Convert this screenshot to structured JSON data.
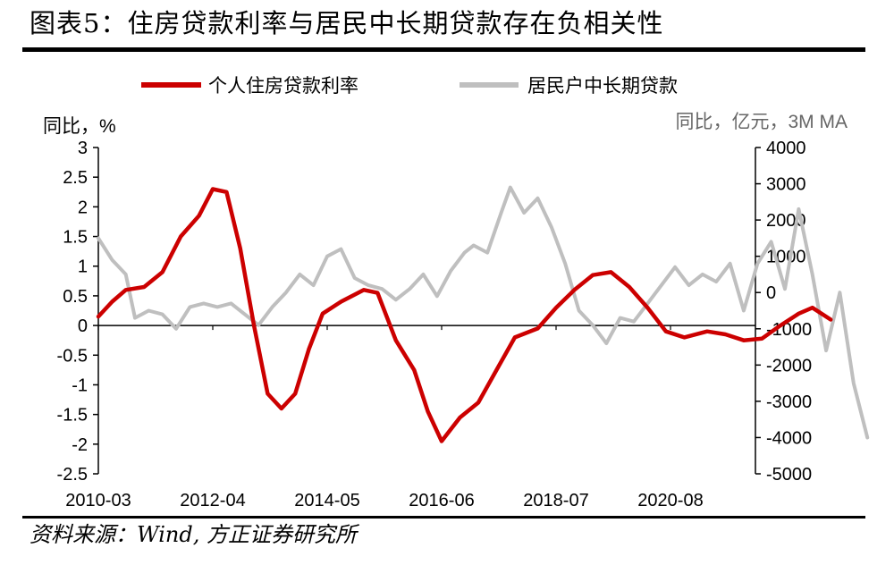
{
  "header": {
    "title": "图表5：住房贷款利率与居民中长期贷款存在负相关性"
  },
  "footer": {
    "source": "资料来源：Wind, 方正证券研究所"
  },
  "chart_data": {
    "type": "line",
    "title": "图表5：住房贷款利率与居民中长期贷款存在负相关性",
    "left_axis": {
      "unit_label": "同比，%",
      "range": [
        -2.5,
        3
      ],
      "ticks": [
        "3",
        "2.5",
        "2",
        "1.5",
        "1",
        "0.5",
        "0",
        "-0.5",
        "-1",
        "-1.5",
        "-2",
        "-2.5"
      ]
    },
    "right_axis": {
      "unit_label": "同比，亿元，3M MA",
      "range": [
        -5000,
        4000
      ],
      "ticks": [
        "4000",
        "3000",
        "2000",
        "1000",
        "0",
        "-1000",
        "-2000",
        "-3000",
        "-4000",
        "-5000"
      ]
    },
    "x_tick_labels": [
      "2010-03",
      "2012-04",
      "2014-05",
      "2016-06",
      "2018-07",
      "2020-08"
    ],
    "legend_position": "top",
    "colors": {
      "red": "#cc0000",
      "gray": "#bfbfbf"
    },
    "series": [
      {
        "name": "个人住房贷款利率",
        "axis": "left",
        "color": "#cc0000",
        "points": [
          [
            "2010-03",
            0.15
          ],
          [
            "2010-06",
            0.4
          ],
          [
            "2010-09",
            0.6
          ],
          [
            "2011-01",
            0.65
          ],
          [
            "2011-05",
            0.9
          ],
          [
            "2011-09",
            1.5
          ],
          [
            "2012-01",
            1.85
          ],
          [
            "2012-04",
            2.3
          ],
          [
            "2012-07",
            2.25
          ],
          [
            "2012-10",
            1.3
          ],
          [
            "2013-01",
            0.0
          ],
          [
            "2013-04",
            -1.15
          ],
          [
            "2013-07",
            -1.4
          ],
          [
            "2013-10",
            -1.15
          ],
          [
            "2014-01",
            -0.4
          ],
          [
            "2014-04",
            0.2
          ],
          [
            "2014-08",
            0.4
          ],
          [
            "2015-01",
            0.6
          ],
          [
            "2015-04",
            0.55
          ],
          [
            "2015-08",
            -0.25
          ],
          [
            "2015-12",
            -0.75
          ],
          [
            "2016-03",
            -1.45
          ],
          [
            "2016-06",
            -1.95
          ],
          [
            "2016-10",
            -1.55
          ],
          [
            "2017-02",
            -1.3
          ],
          [
            "2017-06",
            -0.75
          ],
          [
            "2017-10",
            -0.2
          ],
          [
            "2018-03",
            -0.05
          ],
          [
            "2018-07",
            0.3
          ],
          [
            "2018-11",
            0.6
          ],
          [
            "2019-03",
            0.85
          ],
          [
            "2019-07",
            0.9
          ],
          [
            "2019-11",
            0.65
          ],
          [
            "2020-03",
            0.3
          ],
          [
            "2020-07",
            -0.1
          ],
          [
            "2020-11",
            -0.2
          ],
          [
            "2021-04",
            -0.1
          ],
          [
            "2021-08",
            -0.15
          ],
          [
            "2021-12",
            -0.25
          ],
          [
            "2022-04",
            -0.22
          ],
          [
            "2022-08",
            0.0
          ],
          [
            "2022-12",
            0.2
          ],
          [
            "2023-03",
            0.3
          ],
          [
            "2023-07",
            0.1
          ]
        ]
      },
      {
        "name": "居民户中长期贷款",
        "axis": "right",
        "color": "#bfbfbf",
        "points": [
          [
            "2010-03",
            1500
          ],
          [
            "2010-06",
            900
          ],
          [
            "2010-09",
            500
          ],
          [
            "2010-11",
            -700
          ],
          [
            "2011-02",
            -500
          ],
          [
            "2011-05",
            -600
          ],
          [
            "2011-08",
            -1000
          ],
          [
            "2011-11",
            -400
          ],
          [
            "2012-02",
            -300
          ],
          [
            "2012-05",
            -400
          ],
          [
            "2012-08",
            -300
          ],
          [
            "2012-11",
            -600
          ],
          [
            "2013-02",
            -900
          ],
          [
            "2013-05",
            -400
          ],
          [
            "2013-08",
            0
          ],
          [
            "2013-11",
            500
          ],
          [
            "2014-02",
            200
          ],
          [
            "2014-05",
            1000
          ],
          [
            "2014-08",
            1200
          ],
          [
            "2014-11",
            400
          ],
          [
            "2015-02",
            200
          ],
          [
            "2015-05",
            100
          ],
          [
            "2015-08",
            -200
          ],
          [
            "2015-11",
            100
          ],
          [
            "2016-02",
            500
          ],
          [
            "2016-05",
            -100
          ],
          [
            "2016-08",
            600
          ],
          [
            "2016-11",
            1100
          ],
          [
            "2017-01",
            1300
          ],
          [
            "2017-04",
            1100
          ],
          [
            "2017-07",
            2200
          ],
          [
            "2017-09",
            2900
          ],
          [
            "2017-12",
            2200
          ],
          [
            "2018-03",
            2600
          ],
          [
            "2018-06",
            1800
          ],
          [
            "2018-09",
            800
          ],
          [
            "2018-12",
            -500
          ],
          [
            "2019-03",
            -900
          ],
          [
            "2019-06",
            -1400
          ],
          [
            "2019-09",
            -700
          ],
          [
            "2019-12",
            -800
          ],
          [
            "2020-03",
            -300
          ],
          [
            "2020-06",
            200
          ],
          [
            "2020-09",
            700
          ],
          [
            "2020-12",
            200
          ],
          [
            "2021-03",
            500
          ],
          [
            "2021-06",
            300
          ],
          [
            "2021-09",
            800
          ],
          [
            "2021-12",
            -500
          ],
          [
            "2022-03",
            800
          ],
          [
            "2022-06",
            1400
          ],
          [
            "2022-09",
            100
          ],
          [
            "2022-12",
            2300
          ],
          [
            "2023-03",
            500
          ],
          [
            "2023-06",
            -1600
          ],
          [
            "2023-09",
            0
          ],
          [
            "2023-12",
            -2500
          ],
          [
            "2024-03",
            -4000
          ]
        ]
      }
    ]
  }
}
